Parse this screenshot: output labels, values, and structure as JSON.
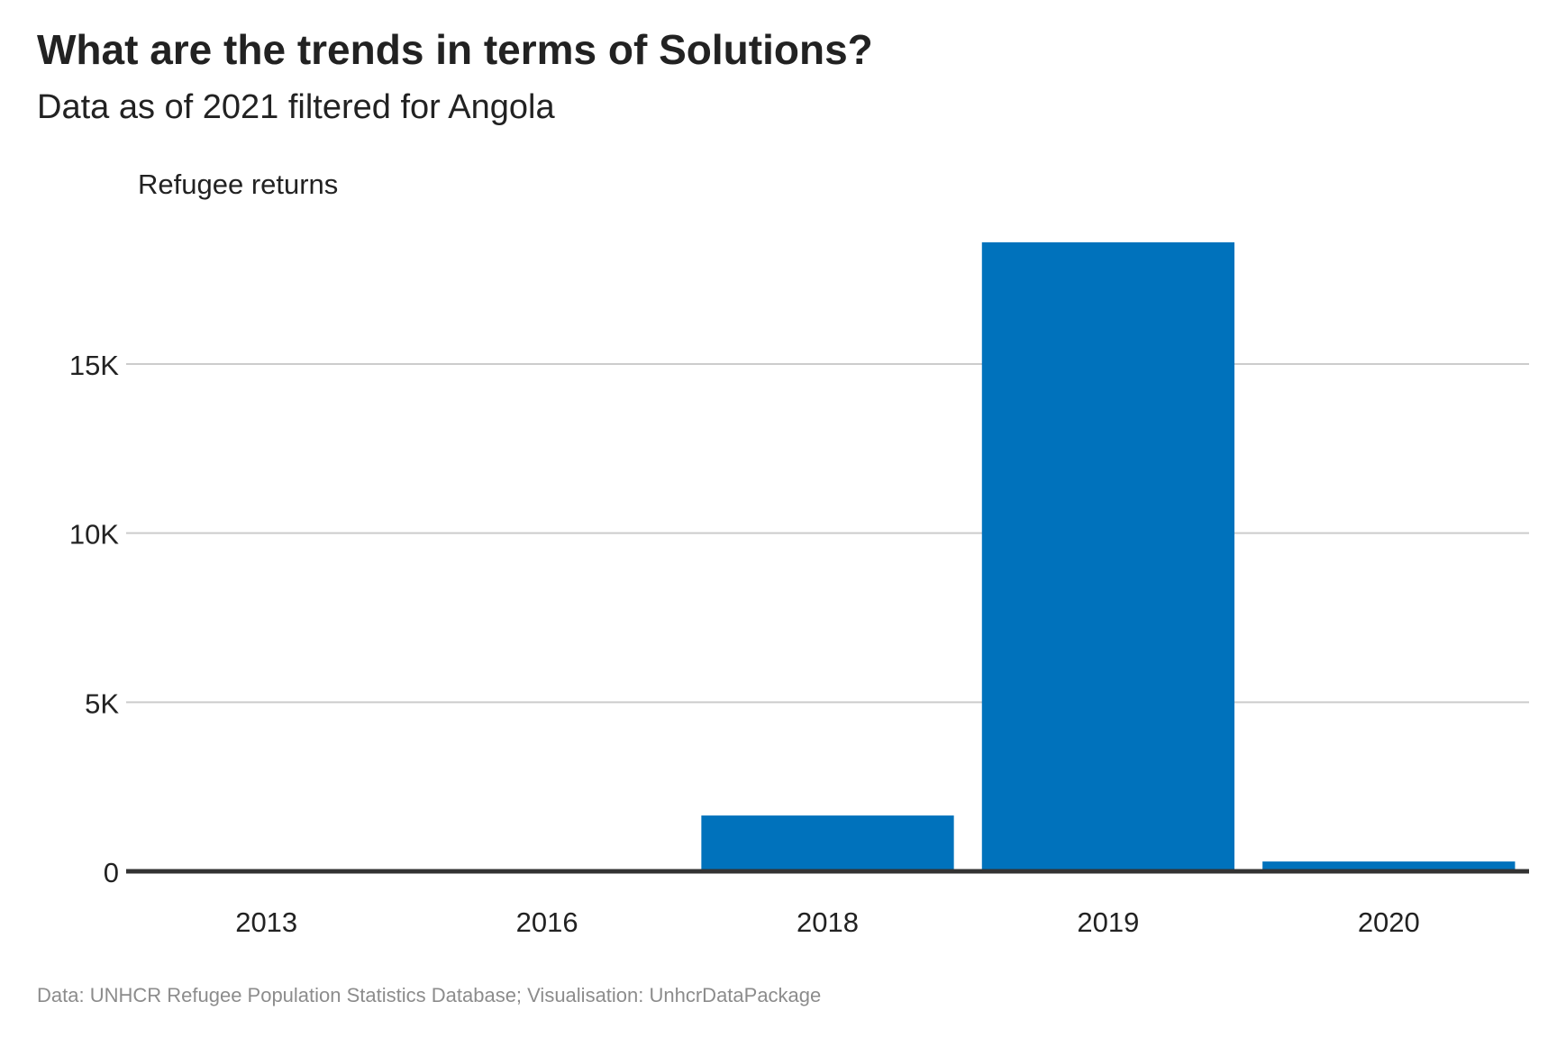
{
  "title": "What are the trends in terms of Solutions?",
  "subtitle": "Data as of 2021 filtered for Angola",
  "caption": "Data: UNHCR Refugee Population Statistics Database; Visualisation: UnhcrDataPackage",
  "colors": {
    "bar": "#0072BC",
    "grid": "#cccccc",
    "axis": "#333333",
    "text": "#222222",
    "caption": "#8c8c8c"
  },
  "chart_data": {
    "type": "bar",
    "ylabel": "Refugee returns",
    "xlabel": "",
    "categories": [
      "2013",
      "2016",
      "2018",
      "2019",
      "2020"
    ],
    "values": [
      5,
      10,
      1650,
      18600,
      290
    ],
    "ylim": [
      0,
      19500
    ],
    "yticks": [
      0,
      5000,
      10000,
      15000
    ],
    "ytick_labels": [
      "0",
      "5K",
      "10K",
      "15K"
    ],
    "grid": true,
    "legend": false
  }
}
